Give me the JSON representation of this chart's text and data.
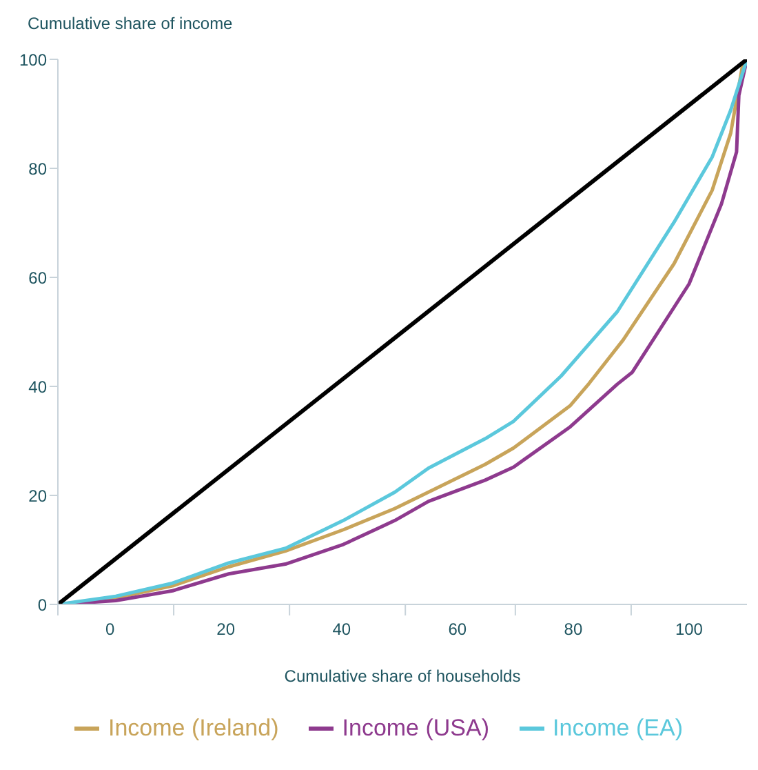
{
  "chart_data": {
    "type": "line",
    "ylabel": "Cumulative share of income",
    "xlabel": "Cumulative share of households",
    "xlim": [
      -9,
      110
    ],
    "xticks": [
      {
        "value": -9,
        "label": null
      },
      {
        "value": 0,
        "label": "0"
      },
      {
        "value": 11,
        "label": null
      },
      {
        "value": 20,
        "label": "20"
      },
      {
        "value": 31,
        "label": null
      },
      {
        "value": 40,
        "label": "40"
      },
      {
        "value": 51,
        "label": null
      },
      {
        "value": 60,
        "label": "60"
      },
      {
        "value": 70,
        "label": null
      },
      {
        "value": 80,
        "label": "80"
      },
      {
        "value": 90,
        "label": null
      },
      {
        "value": 100,
        "label": "100"
      }
    ],
    "ylim": [
      0,
      100
    ],
    "yticks": [
      0,
      20,
      40,
      60,
      80,
      100
    ],
    "grid": false,
    "legend": "bottom",
    "marker": "none",
    "line_style": "solid",
    "series": [
      {
        "name": "Income (Ireland)",
        "color": "#c8a45a",
        "x": [
          -9,
          1,
          10.8,
          20.5,
          30.3,
          40.3,
          49.2,
          55,
          64.8,
          69.7,
          79.5,
          82.7,
          88.6,
          97.4,
          104,
          107.2,
          109.3,
          110
        ],
        "values": [
          0,
          1.2,
          3.4,
          6.9,
          9.8,
          13.7,
          17.6,
          20.6,
          25.7,
          28.7,
          36.5,
          40.5,
          48.5,
          62.5,
          76,
          86.5,
          99.3,
          100
        ]
      },
      {
        "name": "Income (USA)",
        "color": "#8e3a8e",
        "x": [
          -9,
          1,
          10.8,
          20.5,
          30.3,
          40.3,
          49.2,
          55,
          64.8,
          69.7,
          79.5,
          87.6,
          90.2,
          100,
          105.6,
          108.2,
          108.6,
          110
        ],
        "values": [
          0,
          0.7,
          2.5,
          5.6,
          7.4,
          11,
          15.4,
          18.9,
          22.8,
          25.2,
          32.6,
          40.4,
          42.6,
          58.8,
          73.5,
          83,
          93.4,
          100
        ]
      },
      {
        "name": "Income (EA)",
        "color": "#5bc8dc",
        "x": [
          -9,
          1,
          10.8,
          20.5,
          30.3,
          40.3,
          49.2,
          55,
          64.8,
          69.7,
          77.9,
          87.6,
          97.4,
          104,
          107.2,
          110
        ],
        "values": [
          0,
          1.5,
          3.9,
          7.6,
          10.3,
          15.4,
          20.6,
          25,
          30.4,
          33.6,
          41.9,
          53.7,
          70.1,
          82.1,
          90.7,
          100
        ]
      },
      {
        "color": "#000000",
        "x": [
          -9,
          110
        ],
        "values": [
          0,
          100
        ]
      }
    ]
  }
}
